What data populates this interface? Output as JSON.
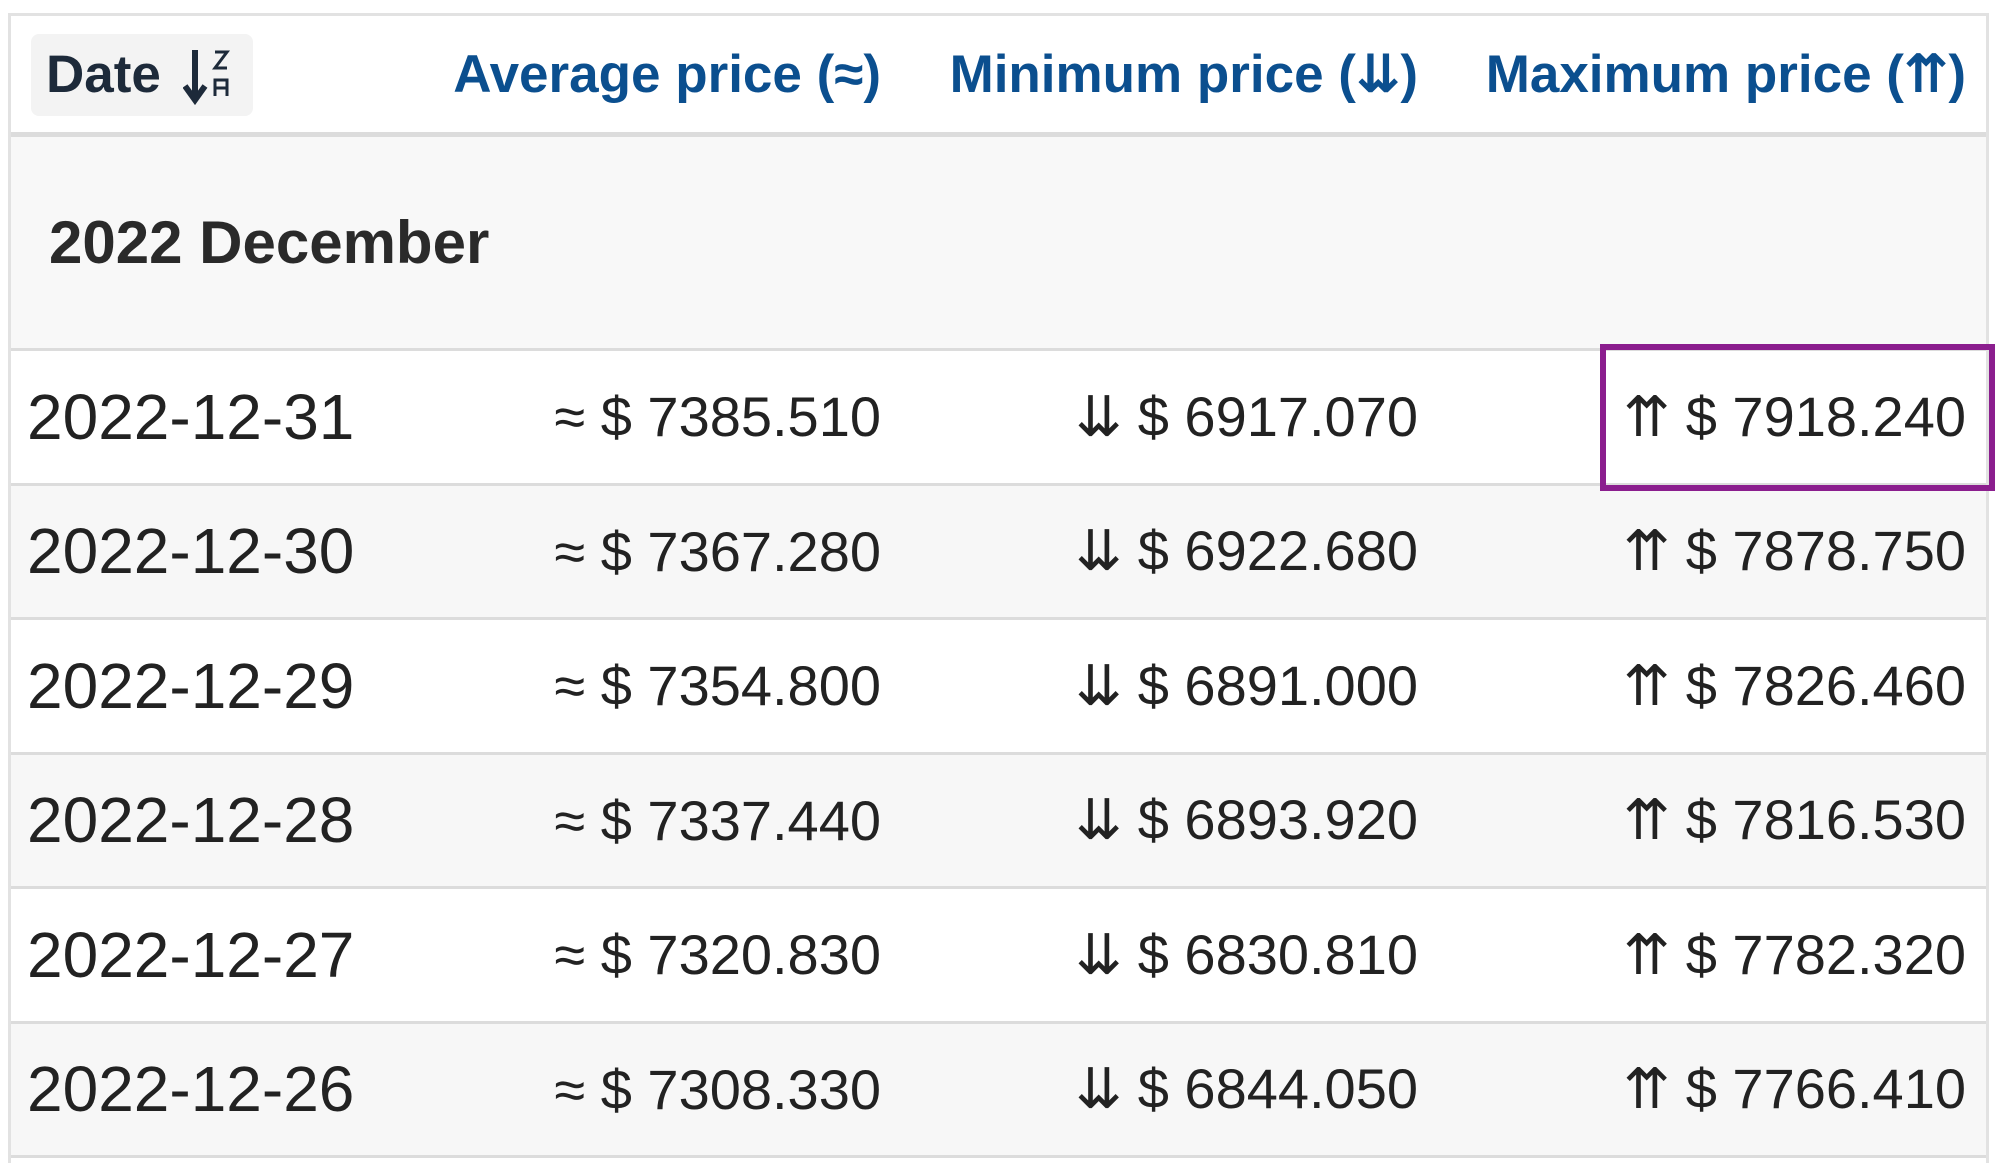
{
  "header": {
    "columns": [
      "Date",
      "Average price (≈)",
      "Minimum price (⇊)",
      "Maximum price (⇈)"
    ]
  },
  "group": "2022 December",
  "rows": [
    [
      "2022-12-31",
      "≈ $ 7385.510",
      "⇊ $ 6917.070",
      "⇈ $ 7918.240"
    ],
    [
      "2022-12-30",
      "≈ $ 7367.280",
      "⇊ $ 6922.680",
      "⇈ $ 7878.750"
    ],
    [
      "2022-12-29",
      "≈ $ 7354.800",
      "⇊ $ 6891.000",
      "⇈ $ 7826.460"
    ],
    [
      "2022-12-28",
      "≈ $ 7337.440",
      "⇊ $ 6893.920",
      "⇈ $ 7816.530"
    ],
    [
      "2022-12-27",
      "≈ $ 7320.830",
      "⇊ $ 6830.810",
      "⇈ $ 7782.320"
    ],
    [
      "2022-12-26",
      "≈ $ 7308.330",
      "⇊ $ 6844.050",
      "⇈ $ 7766.410"
    ]
  ]
}
